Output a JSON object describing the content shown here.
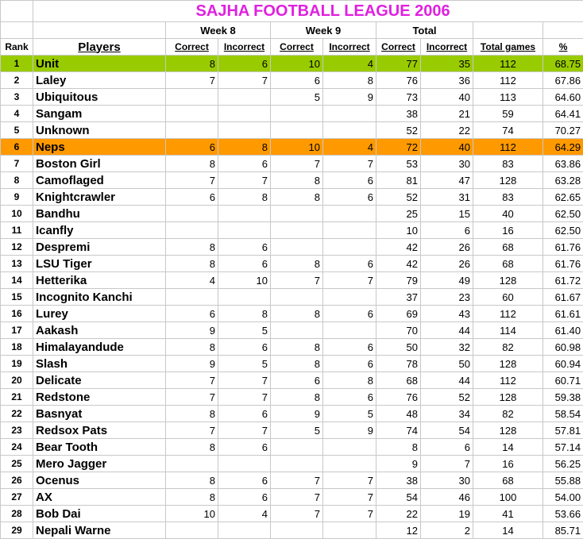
{
  "title": "SAJHA FOOTBALL LEAGUE 2006",
  "group_headers": {
    "week8": "Week 8",
    "week9": "Week 9",
    "total": "Total"
  },
  "columns": {
    "rank": "Rank",
    "players": "Players",
    "w8_correct": "Correct",
    "w8_incorrect": "Incorrect",
    "w9_correct": "Correct",
    "w9_incorrect": "Incorrect",
    "t_correct": "Correct",
    "t_incorrect": "Incorrect",
    "total_games": "Total games",
    "pct": "%"
  },
  "highlight_colors": {
    "Unit": "#99cc00",
    "Neps": "#ff9900"
  },
  "rows": [
    [
      "1",
      "Unit",
      "8",
      "6",
      "10",
      "4",
      "77",
      "35",
      "112",
      "68.75"
    ],
    [
      "2",
      "Laley",
      "7",
      "7",
      "6",
      "8",
      "76",
      "36",
      "112",
      "67.86"
    ],
    [
      "3",
      "Ubiquitous",
      "",
      "",
      "5",
      "9",
      "73",
      "40",
      "113",
      "64.60"
    ],
    [
      "4",
      "Sangam",
      "",
      "",
      "",
      "",
      "38",
      "21",
      "59",
      "64.41"
    ],
    [
      "5",
      "Unknown",
      "",
      "",
      "",
      "",
      "52",
      "22",
      "74",
      "70.27"
    ],
    [
      "6",
      "Neps",
      "6",
      "8",
      "10",
      "4",
      "72",
      "40",
      "112",
      "64.29"
    ],
    [
      "7",
      "Boston Girl",
      "8",
      "6",
      "7",
      "7",
      "53",
      "30",
      "83",
      "63.86"
    ],
    [
      "8",
      "Camoflaged",
      "7",
      "7",
      "8",
      "6",
      "81",
      "47",
      "128",
      "63.28"
    ],
    [
      "9",
      "Knightcrawler",
      "6",
      "8",
      "8",
      "6",
      "52",
      "31",
      "83",
      "62.65"
    ],
    [
      "10",
      "Bandhu",
      "",
      "",
      "",
      "",
      "25",
      "15",
      "40",
      "62.50"
    ],
    [
      "11",
      "Icanfly",
      "",
      "",
      "",
      "",
      "10",
      "6",
      "16",
      "62.50"
    ],
    [
      "12",
      "Despremi",
      "8",
      "6",
      "",
      "",
      "42",
      "26",
      "68",
      "61.76"
    ],
    [
      "13",
      "LSU Tiger",
      "8",
      "6",
      "8",
      "6",
      "42",
      "26",
      "68",
      "61.76"
    ],
    [
      "14",
      "Hetterika",
      "4",
      "10",
      "7",
      "7",
      "79",
      "49",
      "128",
      "61.72"
    ],
    [
      "15",
      "Incognito Kanchi",
      "",
      "",
      "",
      "",
      "37",
      "23",
      "60",
      "61.67"
    ],
    [
      "16",
      "Lurey",
      "6",
      "8",
      "8",
      "6",
      "69",
      "43",
      "112",
      "61.61"
    ],
    [
      "17",
      "Aakash",
      "9",
      "5",
      "",
      "",
      "70",
      "44",
      "114",
      "61.40"
    ],
    [
      "18",
      "Himalayandude",
      "8",
      "6",
      "8",
      "6",
      "50",
      "32",
      "82",
      "60.98"
    ],
    [
      "19",
      "Slash",
      "9",
      "5",
      "8",
      "6",
      "78",
      "50",
      "128",
      "60.94"
    ],
    [
      "20",
      "Delicate",
      "7",
      "7",
      "6",
      "8",
      "68",
      "44",
      "112",
      "60.71"
    ],
    [
      "21",
      "Redstone",
      "7",
      "7",
      "8",
      "6",
      "76",
      "52",
      "128",
      "59.38"
    ],
    [
      "22",
      "Basnyat",
      "8",
      "6",
      "9",
      "5",
      "48",
      "34",
      "82",
      "58.54"
    ],
    [
      "23",
      "Redsox Pats",
      "7",
      "7",
      "5",
      "9",
      "74",
      "54",
      "128",
      "57.81"
    ],
    [
      "24",
      "Bear Tooth",
      "8",
      "6",
      "",
      "",
      "8",
      "6",
      "14",
      "57.14"
    ],
    [
      "25",
      "Mero Jagger",
      "",
      "",
      "",
      "",
      "9",
      "7",
      "16",
      "56.25"
    ],
    [
      "26",
      "Ocenus",
      "8",
      "6",
      "7",
      "7",
      "38",
      "30",
      "68",
      "55.88"
    ],
    [
      "27",
      "AX",
      "8",
      "6",
      "7",
      "7",
      "54",
      "46",
      "100",
      "54.00"
    ],
    [
      "28",
      "Bob Dai",
      "10",
      "4",
      "7",
      "7",
      "22",
      "19",
      "41",
      "53.66"
    ],
    [
      "29",
      "Nepali Warne",
      "",
      "",
      "",
      "",
      "12",
      "2",
      "14",
      "85.71"
    ]
  ]
}
